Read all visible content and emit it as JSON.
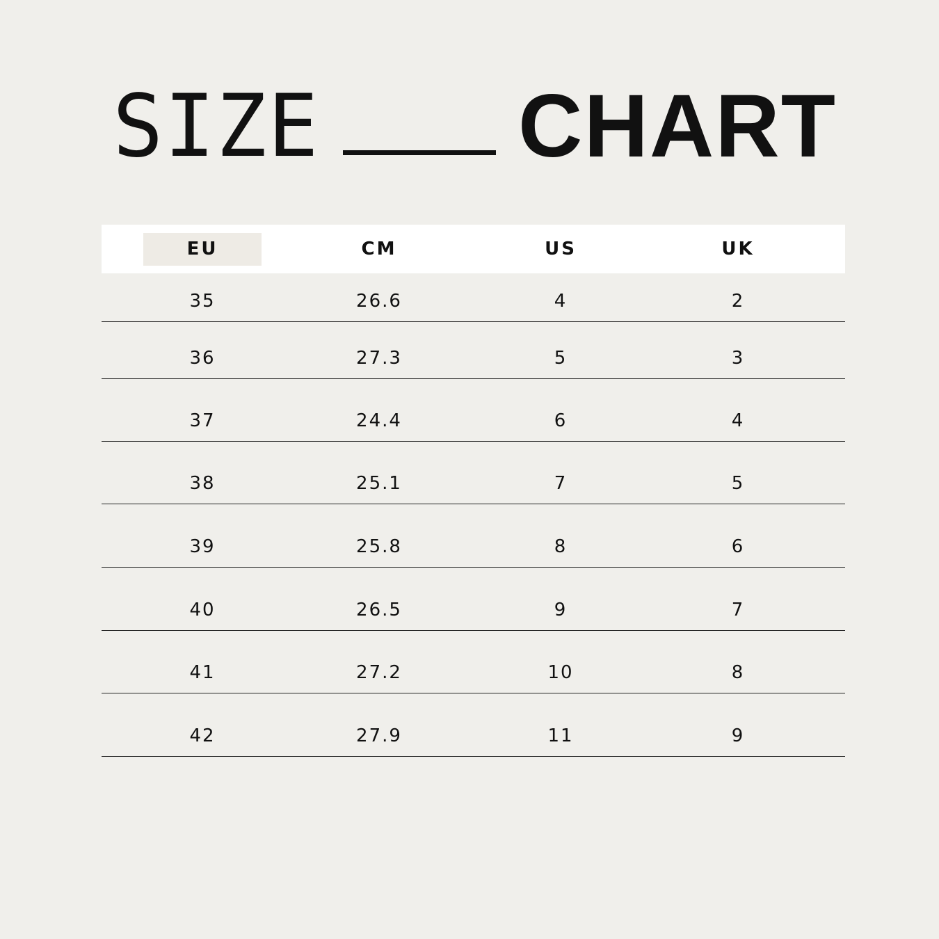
{
  "title": {
    "light": "SIZE",
    "bold": "CHART"
  },
  "table": {
    "columns": [
      "EU",
      "CM",
      "US",
      "UK"
    ],
    "highlight_color": "#eeebe5",
    "rows": [
      [
        "35",
        "26.6",
        "4",
        "2"
      ],
      [
        "36",
        "27.3",
        "5",
        "3"
      ],
      [
        "37",
        "24.4",
        "6",
        "4"
      ],
      [
        "38",
        "25.1",
        "7",
        "5"
      ],
      [
        "39",
        "25.8",
        "8",
        "6"
      ],
      [
        "40",
        "26.5",
        "9",
        "7"
      ],
      [
        "41",
        "27.2",
        "10",
        "8"
      ],
      [
        "42",
        "27.9",
        "11",
        "9"
      ]
    ]
  }
}
